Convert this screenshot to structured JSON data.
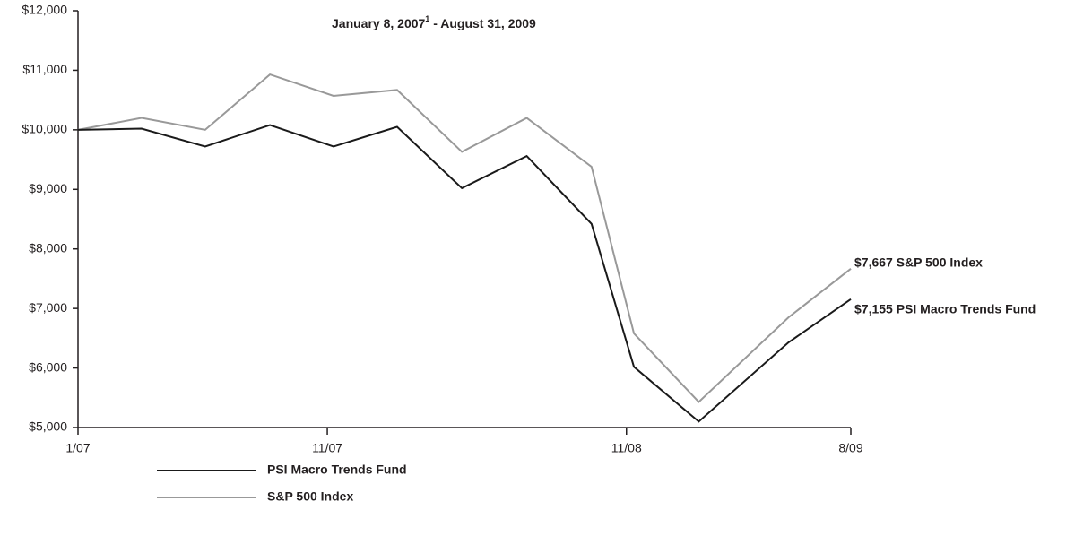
{
  "chart_data": {
    "type": "line",
    "title": {
      "text": "January 8, 2007",
      "footnote": "1",
      "continuation": " - August 31, 2009"
    },
    "x": [
      0,
      2.55,
      5.1,
      7.7,
      10.25,
      12.8,
      15.4,
      18,
      20.6,
      22.3,
      24.9,
      28.5,
      31
    ],
    "xlim": [
      0,
      31
    ],
    "xticks": [
      {
        "value": 0,
        "label": "1/07"
      },
      {
        "value": 10,
        "label": "11/07"
      },
      {
        "value": 22,
        "label": "11/08"
      },
      {
        "value": 31,
        "label": "8/09"
      }
    ],
    "ylim": [
      5000,
      12000
    ],
    "yticks": [
      {
        "value": 5000,
        "label": "$5,000"
      },
      {
        "value": 6000,
        "label": "$6,000"
      },
      {
        "value": 7000,
        "label": "$7,000"
      },
      {
        "value": 8000,
        "label": "$8,000"
      },
      {
        "value": 9000,
        "label": "$9,000"
      },
      {
        "value": 10000,
        "label": "$10,000"
      },
      {
        "value": 11000,
        "label": "$11,000"
      },
      {
        "value": 12000,
        "label": "$12,000"
      }
    ],
    "series": [
      {
        "name": "PSI Macro Trends Fund",
        "color": "#1a1a1a",
        "end_label": "$7,155 PSI Macro Trends Fund",
        "values": [
          10000,
          10020,
          9720,
          10080,
          9720,
          10050,
          9020,
          9560,
          8420,
          6020,
          5100,
          6430,
          7155
        ]
      },
      {
        "name": "S&P 500 Index",
        "color": "#999999",
        "end_label": "$7,667 S&P 500 Index",
        "values": [
          10000,
          10200,
          10000,
          10930,
          10570,
          10670,
          9630,
          10200,
          9380,
          6580,
          5430,
          6850,
          7667
        ]
      }
    ]
  }
}
